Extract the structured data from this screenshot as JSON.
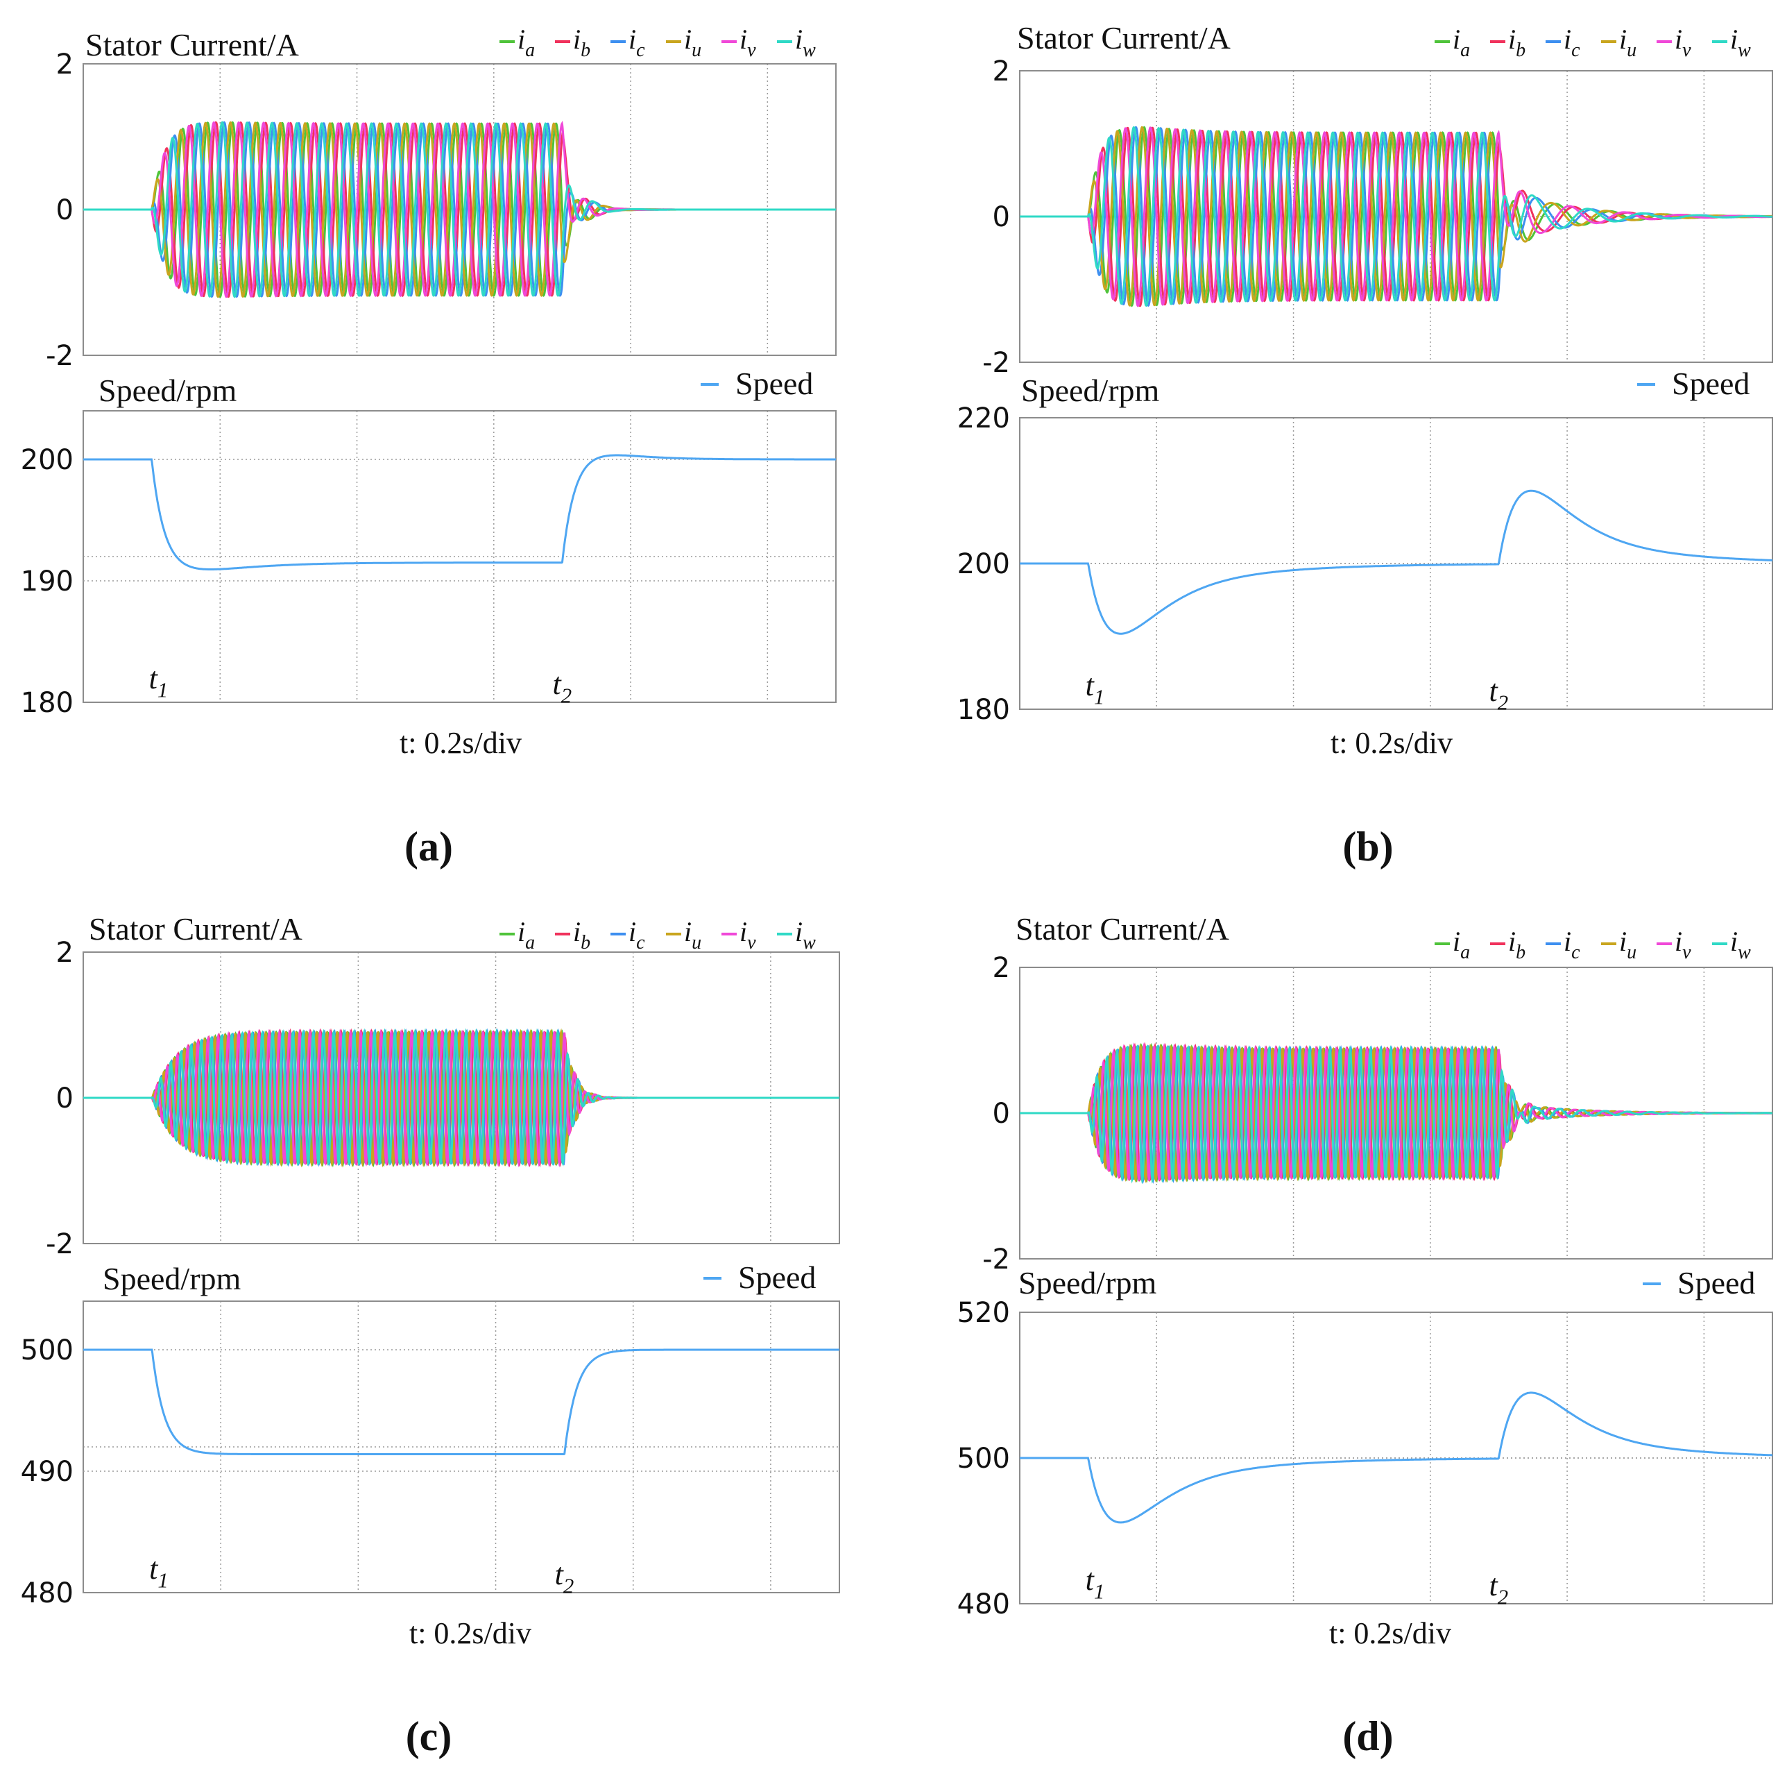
{
  "colors": {
    "ia": "#4fc33a",
    "ib": "#f0325c",
    "ic": "#3d8ff0",
    "iu": "#c9a51e",
    "iv": "#f048d8",
    "iw": "#2fd9c6",
    "speed": "#4ea6f2",
    "frame": "#8c8c8c",
    "grid": "#9a9a9a"
  },
  "chart_data": [
    {
      "panel": "a",
      "panel_label": "(a)",
      "xlabel": "t: 0.2s/div",
      "current": {
        "type": "line",
        "title": "Stator Current/A",
        "ylim": [
          -2,
          2
        ],
        "yticks": [
          "2",
          "0",
          "-2"
        ],
        "legend": [
          {
            "key": "ia",
            "label": "i",
            "sub": "a"
          },
          {
            "key": "ib",
            "label": "i",
            "sub": "b"
          },
          {
            "key": "ic",
            "label": "i",
            "sub": "c"
          },
          {
            "key": "iu",
            "label": "i",
            "sub": "u"
          },
          {
            "key": "iv",
            "label": "i",
            "sub": "v"
          },
          {
            "key": "iw",
            "label": "i",
            "sub": "w"
          }
        ],
        "amplitude": 1.18,
        "peak": 1.28,
        "cycles_per_div": 5.5,
        "rise": "fast",
        "tail": {
          "amplitude": 0.5,
          "tau_div": 0.12,
          "cycles_per_div": 3
        }
      },
      "speed": {
        "type": "line",
        "title": "Speed/rpm",
        "legend": "Speed",
        "ylim": [
          180,
          204
        ],
        "yticks": [
          "200",
          "190",
          "180"
        ],
        "initial": 200,
        "loaded": 191.5,
        "min": 190.8,
        "overshoot": 200.6,
        "mode": "drop"
      },
      "events": {
        "t1_div": 0.5,
        "t2_div": 3.5,
        "t1_label": "t",
        "t1_sub": "1",
        "t2_label": "t",
        "t2_sub": "2"
      },
      "x_divisions": 5.5
    },
    {
      "panel": "b",
      "panel_label": "(b)",
      "xlabel": "t: 0.2s/div",
      "current": {
        "type": "line",
        "title": "Stator Current/A",
        "ylim": [
          -2,
          2
        ],
        "yticks": [
          "2",
          "0",
          "-2"
        ],
        "legend": [
          {
            "key": "ia",
            "label": "i",
            "sub": "a"
          },
          {
            "key": "ib",
            "label": "i",
            "sub": "b"
          },
          {
            "key": "ic",
            "label": "i",
            "sub": "c"
          },
          {
            "key": "iu",
            "label": "i",
            "sub": "u"
          },
          {
            "key": "iv",
            "label": "i",
            "sub": "v"
          },
          {
            "key": "iw",
            "label": "i",
            "sub": "w"
          }
        ],
        "amplitude": 1.15,
        "peak": 1.45,
        "cycles_per_div": 5.5,
        "rise": "fast",
        "tail": {
          "amplitude": 0.45,
          "tau_div": 0.45,
          "cycles_per_div": 2.5
        }
      },
      "speed": {
        "type": "line",
        "title": "Speed/rpm",
        "legend": "Speed",
        "ylim": [
          180,
          220
        ],
        "yticks": [
          "220",
          "200",
          "180"
        ],
        "initial": 200,
        "min": 191.5,
        "peak": 208.8,
        "mode": "recover"
      },
      "events": {
        "t1_div": 0.5,
        "t2_div": 3.5,
        "t1_label": "t",
        "t1_sub": "1",
        "t2_label": "t",
        "t2_sub": "2"
      },
      "x_divisions": 5.5
    },
    {
      "panel": "c",
      "panel_label": "(c)",
      "xlabel": "t: 0.2s/div",
      "current": {
        "type": "line",
        "title": "Stator Current/A",
        "ylim": [
          -2,
          2
        ],
        "yticks": [
          "2",
          "0",
          "-2"
        ],
        "legend": [
          {
            "key": "ia",
            "label": "i",
            "sub": "a"
          },
          {
            "key": "ib",
            "label": "i",
            "sub": "b"
          },
          {
            "key": "ic",
            "label": "i",
            "sub": "c"
          },
          {
            "key": "iu",
            "label": "i",
            "sub": "u"
          },
          {
            "key": "iv",
            "label": "i",
            "sub": "v"
          },
          {
            "key": "iw",
            "label": "i",
            "sub": "w"
          }
        ],
        "amplitude": 0.9,
        "peak": 0.92,
        "cycles_per_div": 13.5,
        "rise": "smooth",
        "tail": {
          "amplitude": 0.15,
          "tau_div": 0.08,
          "cycles_per_div": 6
        }
      },
      "speed": {
        "type": "line",
        "title": "Speed/rpm",
        "legend": "Speed",
        "ylim": [
          480,
          504
        ],
        "yticks": [
          "500",
          "490",
          "480"
        ],
        "initial": 500,
        "loaded": 491.4,
        "min": 491.4,
        "overshoot": 500.0,
        "mode": "drop"
      },
      "events": {
        "t1_div": 0.5,
        "t2_div": 3.5,
        "t1_label": "t",
        "t1_sub": "1",
        "t2_label": "t",
        "t2_sub": "2"
      },
      "x_divisions": 5.5
    },
    {
      "panel": "d",
      "panel_label": "(d)",
      "xlabel": "t: 0.2s/div",
      "current": {
        "type": "line",
        "title": "Stator Current/A",
        "ylim": [
          -2,
          2
        ],
        "yticks": [
          "2",
          "0",
          "-2"
        ],
        "legend": [
          {
            "key": "ia",
            "label": "i",
            "sub": "a"
          },
          {
            "key": "ib",
            "label": "i",
            "sub": "b"
          },
          {
            "key": "ic",
            "label": "i",
            "sub": "c"
          },
          {
            "key": "iu",
            "label": "i",
            "sub": "u"
          },
          {
            "key": "iv",
            "label": "i",
            "sub": "v"
          },
          {
            "key": "iw",
            "label": "i",
            "sub": "w"
          }
        ],
        "amplitude": 0.88,
        "peak": 1.05,
        "cycles_per_div": 13.5,
        "rise": "fast",
        "tail": {
          "amplitude": 0.16,
          "tau_div": 0.45,
          "cycles_per_div": 6
        }
      },
      "speed": {
        "type": "line",
        "title": "Speed/rpm",
        "legend": "Speed",
        "ylim": [
          480,
          520
        ],
        "yticks": [
          "520",
          "500",
          "480"
        ],
        "initial": 500,
        "min": 492.2,
        "peak": 507.9,
        "mode": "recover"
      },
      "events": {
        "t1_div": 0.5,
        "t2_div": 3.5,
        "t1_label": "t",
        "t1_sub": "1",
        "t2_label": "t",
        "t2_sub": "2"
      },
      "x_divisions": 5.5
    }
  ]
}
